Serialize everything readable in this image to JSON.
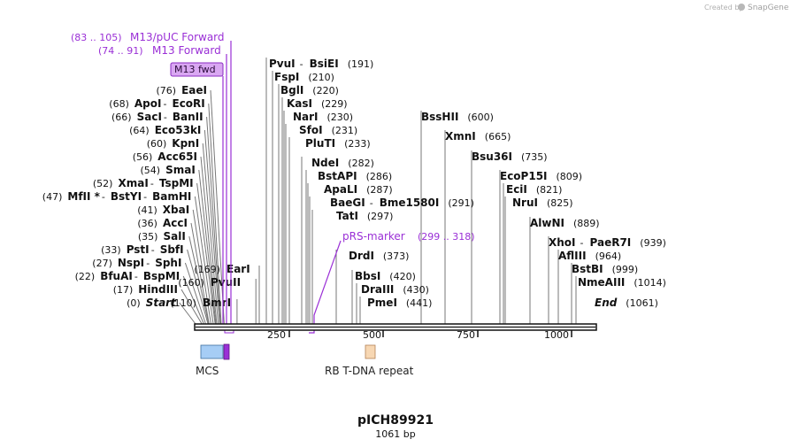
{
  "credit": {
    "text": "Created by",
    "brand": "SnapGene"
  },
  "plasmid": {
    "name": "pICH89921",
    "length_label": "1061 bp"
  },
  "left_enzymes": [
    {
      "pos": "(76)",
      "parts": [
        "EaeI"
      ]
    },
    {
      "pos": "(68)",
      "parts": [
        "ApoI",
        "EcoRI"
      ]
    },
    {
      "pos": "(66)",
      "parts": [
        "SacI",
        "BanII"
      ]
    },
    {
      "pos": "(64)",
      "parts": [
        "Eco53kI"
      ]
    },
    {
      "pos": "(60)",
      "parts": [
        "KpnI"
      ]
    },
    {
      "pos": "(56)",
      "parts": [
        "Acc65I"
      ]
    },
    {
      "pos": "(54)",
      "parts": [
        "SmaI"
      ]
    },
    {
      "pos": "(52)",
      "parts": [
        "XmaI",
        "TspMI"
      ]
    },
    {
      "pos": "(47)",
      "parts": [
        "MfII *",
        "BstYI",
        "BamHI"
      ]
    },
    {
      "pos": "(41)",
      "parts": [
        "XbaI"
      ]
    },
    {
      "pos": "(36)",
      "parts": [
        "AccI"
      ]
    },
    {
      "pos": "(35)",
      "parts": [
        "SalI"
      ]
    },
    {
      "pos": "(33)",
      "parts": [
        "PstI",
        "SbfI"
      ]
    },
    {
      "pos": "(27)",
      "parts": [
        "NspI",
        "SphI"
      ]
    },
    {
      "pos": "(22)",
      "parts": [
        "BfuAI",
        "BspMI"
      ]
    },
    {
      "pos": "(17)",
      "parts": [
        "HindIII"
      ]
    },
    {
      "pos": "(0)",
      "parts": [
        "Start"
      ],
      "italic": true
    }
  ],
  "center_left_enzymes": [
    {
      "pos": "(169)",
      "parts": [
        "EarI"
      ]
    },
    {
      "pos": "(160)",
      "parts": [
        "PvuII"
      ]
    },
    {
      "pos": "(110)",
      "parts": [
        "BmrI"
      ]
    }
  ],
  "right_enzymes": [
    {
      "pos": "(191)",
      "parts": [
        "PvuI",
        "BsiEI"
      ]
    },
    {
      "pos": "(210)",
      "parts": [
        "FspI"
      ]
    },
    {
      "pos": "(220)",
      "parts": [
        "BglI"
      ]
    },
    {
      "pos": "(229)",
      "parts": [
        "KasI"
      ]
    },
    {
      "pos": "(230)",
      "parts": [
        "NarI"
      ]
    },
    {
      "pos": "(231)",
      "parts": [
        "SfoI"
      ]
    },
    {
      "pos": "(233)",
      "parts": [
        "PluTI"
      ]
    },
    {
      "pos": "(282)",
      "parts": [
        "NdeI"
      ]
    },
    {
      "pos": "(286)",
      "parts": [
        "BstAPI"
      ]
    },
    {
      "pos": "(287)",
      "parts": [
        "ApaLI"
      ]
    },
    {
      "pos": "(291)",
      "parts": [
        "BaeGI",
        "Bme1580I"
      ]
    },
    {
      "pos": "(297)",
      "parts": [
        "TatI"
      ]
    },
    {
      "pos": "(373)",
      "parts": [
        "DrdI"
      ]
    },
    {
      "pos": "(420)",
      "parts": [
        "BbsI"
      ]
    },
    {
      "pos": "(430)",
      "parts": [
        "DraIII"
      ]
    },
    {
      "pos": "(441)",
      "parts": [
        "PmeI"
      ]
    },
    {
      "pos": "(600)",
      "parts": [
        "BssHII"
      ]
    },
    {
      "pos": "(665)",
      "parts": [
        "XmnI"
      ]
    },
    {
      "pos": "(735)",
      "parts": [
        "Bsu36I"
      ]
    },
    {
      "pos": "(809)",
      "parts": [
        "EcoP15I"
      ]
    },
    {
      "pos": "(821)",
      "parts": [
        "EciI"
      ]
    },
    {
      "pos": "(825)",
      "parts": [
        "NruI"
      ]
    },
    {
      "pos": "(889)",
      "parts": [
        "AlwNI"
      ]
    },
    {
      "pos": "(939)",
      "parts": [
        "XhoI",
        "PaeR7I"
      ]
    },
    {
      "pos": "(964)",
      "parts": [
        "AflIII"
      ]
    },
    {
      "pos": "(999)",
      "parts": [
        "BstBI"
      ]
    },
    {
      "pos": "(1014)",
      "parts": [
        "NmeAIII"
      ]
    },
    {
      "pos": "(1061)",
      "parts": [
        "End"
      ],
      "italic": true
    }
  ],
  "features": {
    "m13_puc": {
      "range": "(83 .. 105)",
      "name": "M13/pUC Forward"
    },
    "m13": {
      "range": "(74 .. 91)",
      "name": "M13 Forward"
    },
    "m13_fwd": {
      "name": "M13 fwd"
    },
    "prs_marker": {
      "name": "pRS-marker",
      "range": "(299 .. 318)"
    },
    "mcs": {
      "name": "MCS"
    },
    "rb": {
      "name": "RB T-DNA repeat"
    }
  },
  "ruler": {
    "ticks": [
      "250",
      "500",
      "750",
      "1000"
    ]
  },
  "colors": {
    "feature_purple": "#9a2fd6",
    "mcs_fill": "#a6cdf5",
    "rb_fill": "#f7d7b3",
    "primer_fill": "#d9a7f2"
  }
}
